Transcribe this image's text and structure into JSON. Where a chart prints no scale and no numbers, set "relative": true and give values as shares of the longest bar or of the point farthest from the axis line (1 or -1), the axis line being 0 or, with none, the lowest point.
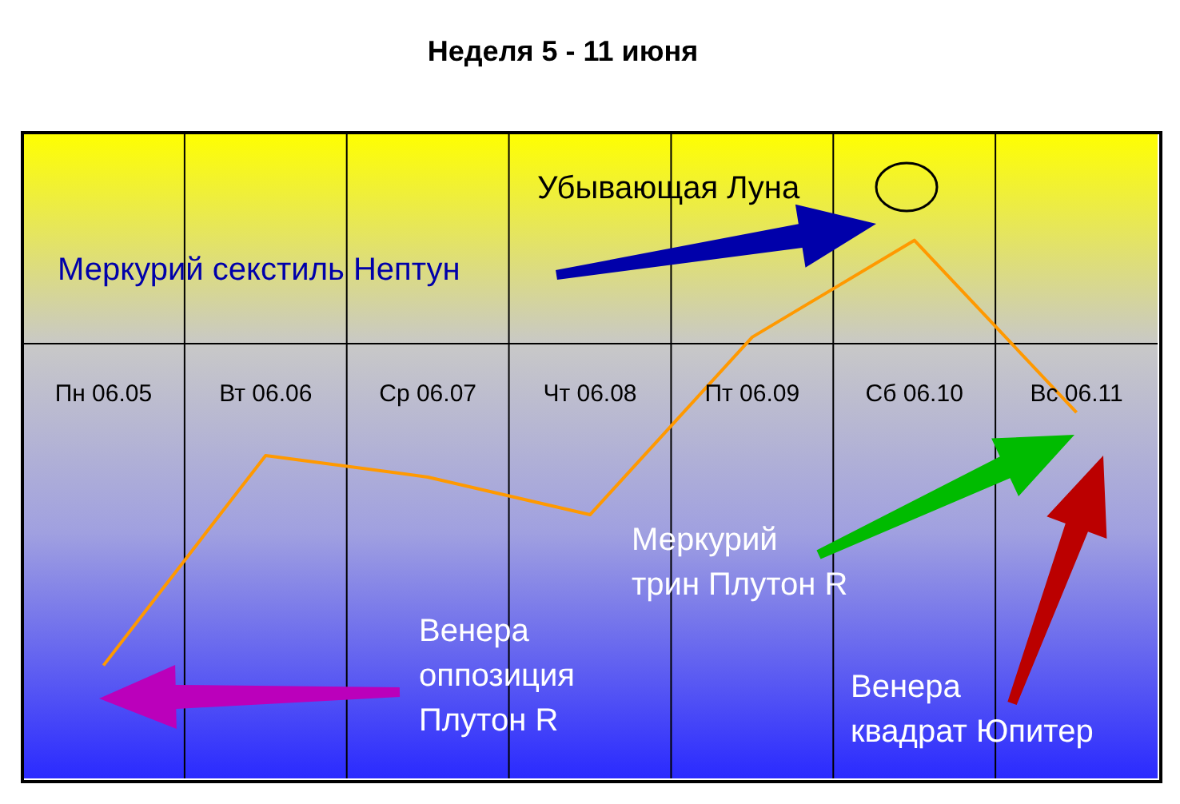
{
  "chart_data": {
    "type": "line",
    "title": "Неделя 5 - 11 июня",
    "relative": true,
    "categories": [
      "Пн 06.05",
      "Вт 06.06",
      "Ср 06.07",
      "Чт 06.08",
      "Пт 06.09",
      "Сб 06.10",
      "Вс 06.11"
    ],
    "series": [
      {
        "color": "#ff9900",
        "values": [
          0.21,
          0.6,
          0.56,
          0.49,
          0.82,
          1,
          0.68
        ]
      }
    ],
    "annotations": [
      "Убывающая Луна",
      "Меркурий секстиль Нептун",
      "Меркурий\nтрин Плутон R",
      "Венера\nоппозиция\nПлутон R",
      "Венера\nквадрат Юпитер"
    ],
    "grid": true,
    "legend": false,
    "marker": "none",
    "line_style": "solid"
  }
}
